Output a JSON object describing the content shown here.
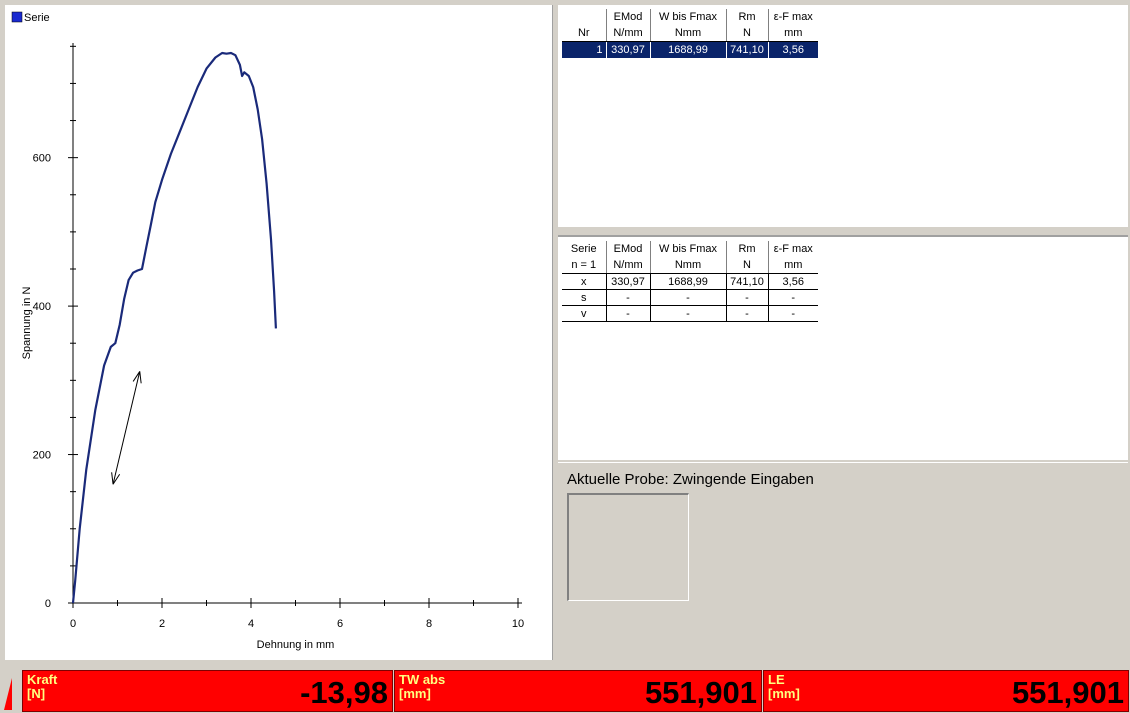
{
  "chart_data": {
    "type": "line",
    "legend": {
      "label": "Serie",
      "placement": "top-left"
    },
    "xlabel": "Dehnung in mm",
    "ylabel": "Spannung in N",
    "xlim": [
      0,
      10
    ],
    "ylim": [
      0,
      741
    ],
    "xticks": [
      0,
      2,
      4,
      6,
      8,
      10
    ],
    "yticks": [
      0,
      200,
      400,
      600
    ],
    "series": [
      {
        "name": "Serie",
        "color": "#1a2a7a",
        "x": [
          0,
          0.05,
          0.15,
          0.3,
          0.5,
          0.7,
          0.85,
          0.95,
          1.05,
          1.15,
          1.25,
          1.35,
          1.45,
          1.55,
          1.65,
          1.75,
          1.85,
          2.0,
          2.2,
          2.4,
          2.6,
          2.8,
          3.0,
          3.2,
          3.35,
          3.45,
          3.55,
          3.65,
          3.75,
          3.8,
          3.85,
          3.95,
          4.05,
          4.15,
          4.25,
          4.35,
          4.45,
          4.52,
          4.56
        ],
        "y": [
          0,
          30,
          100,
          180,
          260,
          320,
          345,
          350,
          375,
          410,
          435,
          445,
          448,
          450,
          480,
          510,
          540,
          570,
          605,
          635,
          665,
          695,
          720,
          735,
          741,
          740,
          741,
          738,
          725,
          710,
          715,
          710,
          695,
          665,
          625,
          565,
          490,
          420,
          370
        ]
      }
    ],
    "annotation": {
      "type": "double-arrow",
      "from": [
        0.9,
        160
      ],
      "to": [
        1.5,
        312
      ]
    }
  },
  "results_table": {
    "headers_top": [
      "",
      "EMod",
      "W bis Fmax",
      "Rm",
      "ε-F max"
    ],
    "headers_bottom": [
      "Nr",
      "N/mm",
      "Nmm",
      "N",
      "mm"
    ],
    "rows": [
      [
        "1",
        "330,97",
        "1688,99",
        "741,10",
        "3,56"
      ]
    ]
  },
  "stats_table": {
    "headers_top": [
      "Serie",
      "EMod",
      "W bis Fmax",
      "Rm",
      "ε-F max"
    ],
    "headers_bottom": [
      "n = 1",
      "N/mm",
      "Nmm",
      "N",
      "mm"
    ],
    "rows": [
      [
        "x",
        "330,97",
        "1688,99",
        "741,10",
        "3,56"
      ],
      [
        "s",
        "-",
        "-",
        "-",
        "-"
      ],
      [
        "v",
        "-",
        "-",
        "-",
        "-"
      ]
    ]
  },
  "probe": {
    "title": "Aktuelle Probe: Zwingende Eingaben"
  },
  "status": {
    "kraft": {
      "label": "Kraft\n[N]",
      "value": "-13,98"
    },
    "tw_abs": {
      "label": "TW abs\n[mm]",
      "value": "551,901"
    },
    "le": {
      "label": "LE\n[mm]",
      "value": "551,901"
    }
  },
  "colors": {
    "selection": "#0a246a",
    "status_bg": "#ff0000",
    "status_label": "#ffff80"
  }
}
